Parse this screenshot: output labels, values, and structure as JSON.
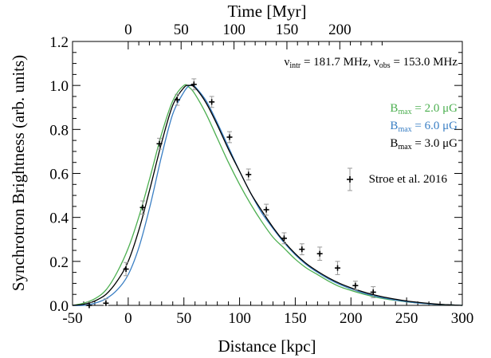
{
  "chart_data": {
    "type": "line",
    "xlabel": "Distance [kpc]",
    "ylabel": "Synchrotron Brightness (arb. units)",
    "top_axis_label": "Time [Myr]",
    "xlim": [
      -50,
      300
    ],
    "ylim": [
      0,
      1.2
    ],
    "x_ticks": [
      -50,
      0,
      50,
      100,
      150,
      200,
      250,
      300
    ],
    "x_tick_labels": [
      "-50",
      "0",
      "50",
      "100",
      "150",
      "200",
      "250",
      "300"
    ],
    "y_ticks": [
      0,
      0.2,
      0.4,
      0.6,
      0.8,
      1.0,
      1.2
    ],
    "y_tick_labels": [
      "0.0",
      "0.2",
      "0.4",
      "0.6",
      "0.8",
      "1.0",
      "1.2"
    ],
    "top_ticks_at_distance": [
      0,
      47.5,
      95,
      142.5,
      190
    ],
    "top_tick_labels": [
      "0",
      "50",
      "100",
      "150",
      "200"
    ],
    "grid": false,
    "legend_position": "right",
    "annotation": {
      "nu_intr_symbol": "ν",
      "nu_intr_sub": "intr",
      "nu_intr_value": " = 181.7 MHz, ",
      "nu_obs_symbol": "ν",
      "nu_obs_sub": "obs",
      "nu_obs_value": " = 153.0 MHz"
    },
    "series": [
      {
        "name_base": "B",
        "name_sub": "max",
        "name_value": " = 2.0 μG",
        "color": "#4caf50",
        "x": [
          -50,
          -40,
          -30,
          -20,
          -10,
          0,
          10,
          20,
          30,
          40,
          50,
          55,
          60,
          70,
          80,
          90,
          100,
          110,
          120,
          130,
          140,
          150,
          160,
          170,
          180,
          190,
          200,
          210,
          220,
          230,
          240,
          250,
          260,
          270,
          280,
          290,
          300
        ],
        "y": [
          0.0,
          0.01,
          0.03,
          0.07,
          0.15,
          0.26,
          0.41,
          0.59,
          0.78,
          0.93,
          1.0,
          0.99,
          0.96,
          0.87,
          0.76,
          0.65,
          0.55,
          0.46,
          0.38,
          0.31,
          0.26,
          0.21,
          0.17,
          0.14,
          0.11,
          0.085,
          0.068,
          0.053,
          0.04,
          0.03,
          0.023,
          0.016,
          0.011,
          0.007,
          0.004,
          0.002,
          0.0
        ]
      },
      {
        "name_base": "B",
        "name_sub": "max",
        "name_value": " = 6.0 μG",
        "color": "#3a7fc4",
        "x": [
          -50,
          -40,
          -30,
          -20,
          -10,
          0,
          10,
          20,
          30,
          40,
          50,
          55,
          58,
          60,
          70,
          80,
          90,
          100,
          110,
          120,
          130,
          140,
          150,
          160,
          170,
          180,
          190,
          200,
          210,
          220,
          230,
          240,
          250,
          260,
          270,
          280,
          290,
          300
        ],
        "y": [
          0.0,
          0.0,
          0.01,
          0.03,
          0.07,
          0.14,
          0.27,
          0.46,
          0.68,
          0.87,
          0.97,
          1.0,
          1.0,
          0.995,
          0.93,
          0.83,
          0.72,
          0.61,
          0.51,
          0.42,
          0.35,
          0.285,
          0.23,
          0.185,
          0.15,
          0.12,
          0.095,
          0.075,
          0.058,
          0.044,
          0.033,
          0.024,
          0.017,
          0.011,
          0.007,
          0.004,
          0.002,
          0.0
        ]
      },
      {
        "name_base": "B",
        "name_sub": "max",
        "name_value": " = 3.0 μG",
        "color": "#000000",
        "x": [
          -50,
          -40,
          -30,
          -20,
          -10,
          0,
          10,
          20,
          30,
          40,
          50,
          55,
          60,
          70,
          80,
          90,
          100,
          110,
          120,
          130,
          140,
          150,
          160,
          170,
          180,
          190,
          200,
          210,
          220,
          230,
          240,
          250,
          260,
          270,
          280,
          290,
          300
        ],
        "y": [
          0.0,
          0.005,
          0.02,
          0.05,
          0.11,
          0.2,
          0.35,
          0.54,
          0.74,
          0.91,
          0.99,
          1.0,
          0.99,
          0.92,
          0.82,
          0.71,
          0.61,
          0.51,
          0.43,
          0.355,
          0.29,
          0.235,
          0.19,
          0.155,
          0.125,
          0.1,
          0.08,
          0.063,
          0.049,
          0.037,
          0.028,
          0.02,
          0.014,
          0.009,
          0.005,
          0.002,
          0.0
        ]
      }
    ],
    "observations": {
      "name": "Stroe et al. 2016",
      "x": [
        -35,
        -20,
        -2,
        13,
        28,
        44,
        59,
        75,
        91,
        108,
        124,
        140,
        156,
        172,
        188,
        204,
        220
      ],
      "y": [
        0.0,
        0.01,
        0.165,
        0.445,
        0.735,
        0.935,
        1.005,
        0.925,
        0.765,
        0.595,
        0.435,
        0.305,
        0.255,
        0.235,
        0.17,
        0.09,
        0.06
      ],
      "err": [
        0.015,
        0.02,
        0.03,
        0.03,
        0.025,
        0.025,
        0.025,
        0.025,
        0.025,
        0.025,
        0.025,
        0.025,
        0.025,
        0.03,
        0.03,
        0.02,
        0.025
      ]
    }
  }
}
